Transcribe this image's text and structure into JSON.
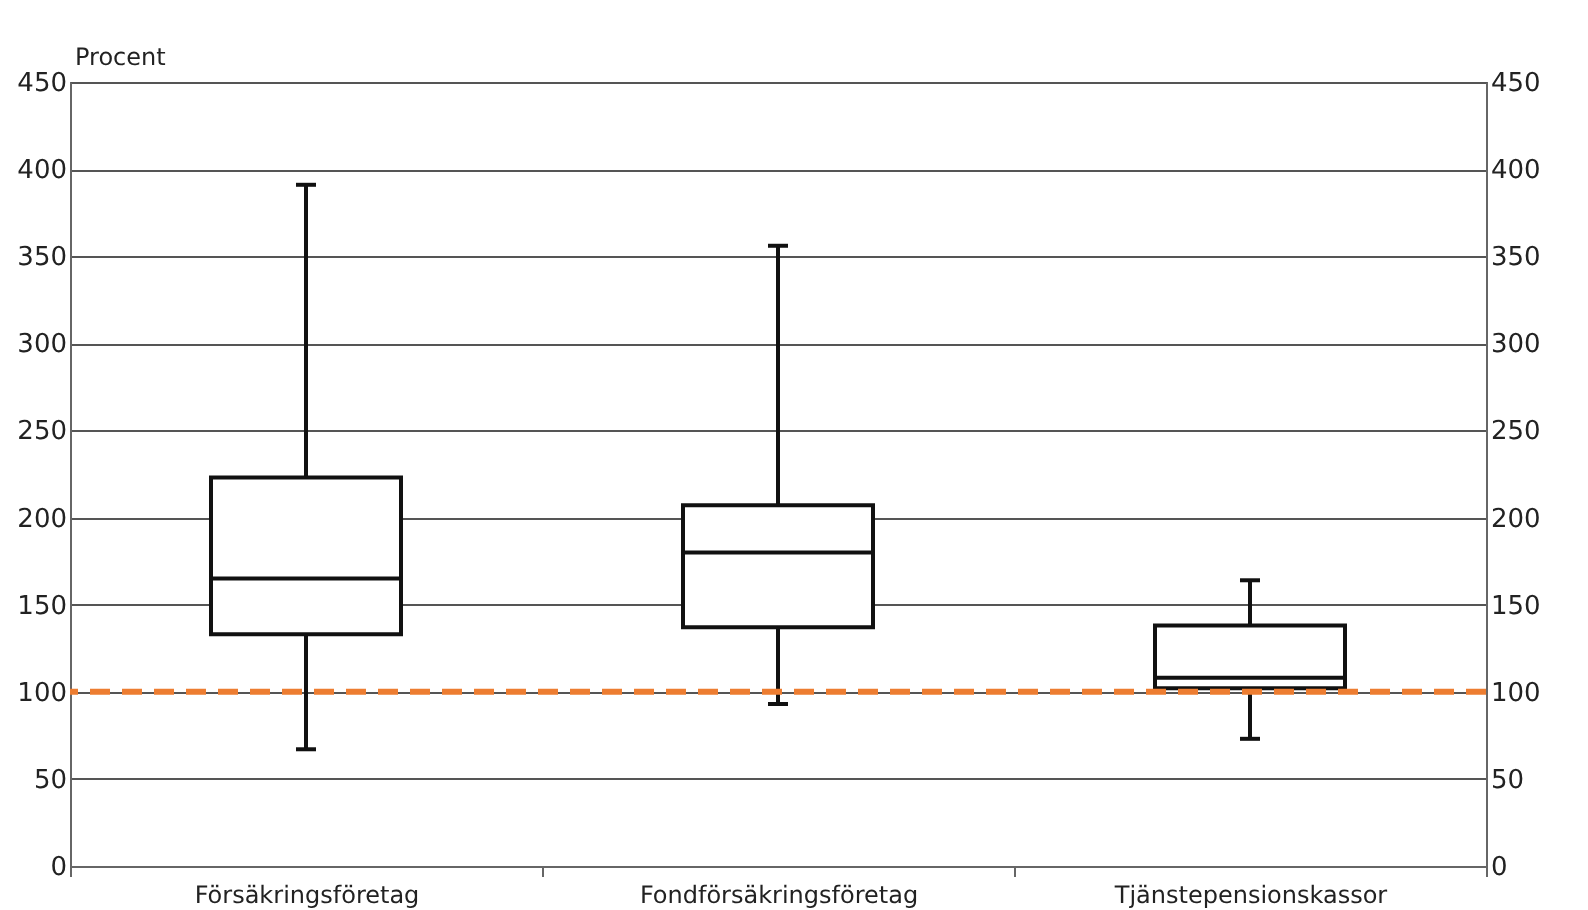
{
  "chart_data": {
    "type": "box",
    "ylabel": "Procent",
    "categories": [
      "Försäkringsföretag",
      "Fondförsäkringsföretag",
      "Tjänstepensionskassor"
    ],
    "boxes": [
      {
        "low": 67,
        "q1": 133,
        "median": 165,
        "q3": 223,
        "high": 391
      },
      {
        "low": 93,
        "q1": 137,
        "median": 180,
        "q3": 207,
        "high": 356
      },
      {
        "low": 73,
        "q1": 102,
        "median": 108,
        "q3": 138,
        "high": 164
      }
    ],
    "ylim": [
      0,
      450
    ],
    "yticks": [
      0,
      50,
      100,
      150,
      200,
      250,
      300,
      350,
      400,
      450
    ],
    "y2lim": [
      0,
      450
    ],
    "y2ticks": [
      0,
      50,
      100,
      150,
      200,
      250,
      300,
      350,
      400,
      450
    ],
    "grid": "y",
    "ref_lines": [
      {
        "axis": "y",
        "value": 100,
        "color": "#ed7d31",
        "line_style": "dashed"
      }
    ]
  }
}
